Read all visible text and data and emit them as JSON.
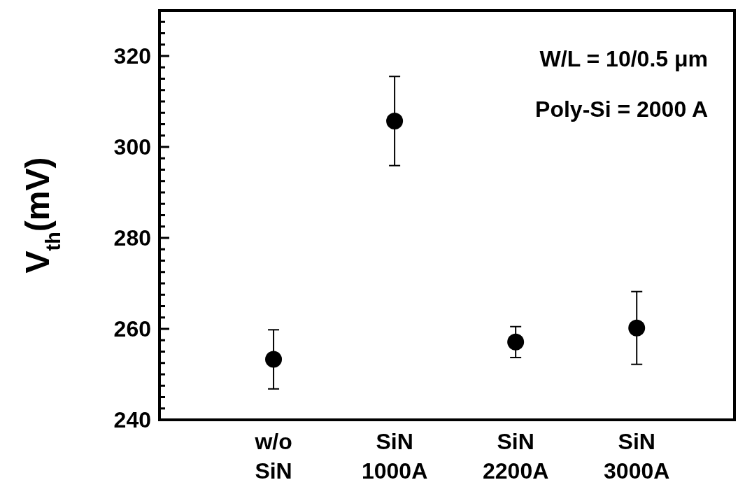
{
  "chart_data": {
    "type": "scatter",
    "ylabel": "V$_{th}$(mV)",
    "categories": [
      "w/o SiN",
      "SiN 1000A",
      "SiN 2200A",
      "SiN 3000A"
    ],
    "series": [
      {
        "color": "#000000",
        "values": [
          253.3,
          305.7,
          257.1,
          260.2
        ],
        "errors": [
          6.5,
          9.8,
          3.4,
          8
        ]
      }
    ],
    "marker": "circle",
    "ylim": [
      240,
      330
    ],
    "yticks": [
      240,
      {
        "value": 242.5,
        "label": null
      },
      {
        "value": 245,
        "label": null
      },
      {
        "value": 247.5,
        "label": null
      },
      {
        "value": 250,
        "label": null
      },
      {
        "value": 252.5,
        "label": null
      },
      {
        "value": 255,
        "label": null
      },
      {
        "value": 257.5,
        "label": null
      },
      260,
      {
        "value": 262.5,
        "label": null
      },
      {
        "value": 265,
        "label": null
      },
      {
        "value": 267.5,
        "label": null
      },
      {
        "value": 270,
        "label": null
      },
      {
        "value": 272.5,
        "label": null
      },
      {
        "value": 275,
        "label": null
      },
      {
        "value": 277.5,
        "label": null
      },
      280,
      {
        "value": 282.5,
        "label": null
      },
      {
        "value": 285,
        "label": null
      },
      {
        "value": 287.5,
        "label": null
      },
      {
        "value": 290,
        "label": null
      },
      {
        "value": 292.5,
        "label": null
      },
      {
        "value": 295,
        "label": null
      },
      {
        "value": 297.5,
        "label": null
      },
      300,
      {
        "value": 302.5,
        "label": null
      },
      {
        "value": 305,
        "label": null
      },
      {
        "value": 307.5,
        "label": null
      },
      {
        "value": 310,
        "label": null
      },
      {
        "value": 312.5,
        "label": null
      },
      {
        "value": 315,
        "label": null
      },
      {
        "value": 317.5,
        "label": null
      },
      320,
      {
        "value": 322.5,
        "label": null
      },
      {
        "value": 325,
        "label": null
      },
      {
        "value": 327.5,
        "label": null
      }
    ],
    "annotations": [
      "W/L = 10/0.5 μm",
      "Poly-Si = 2000 A"
    ],
    "grid": false
  }
}
